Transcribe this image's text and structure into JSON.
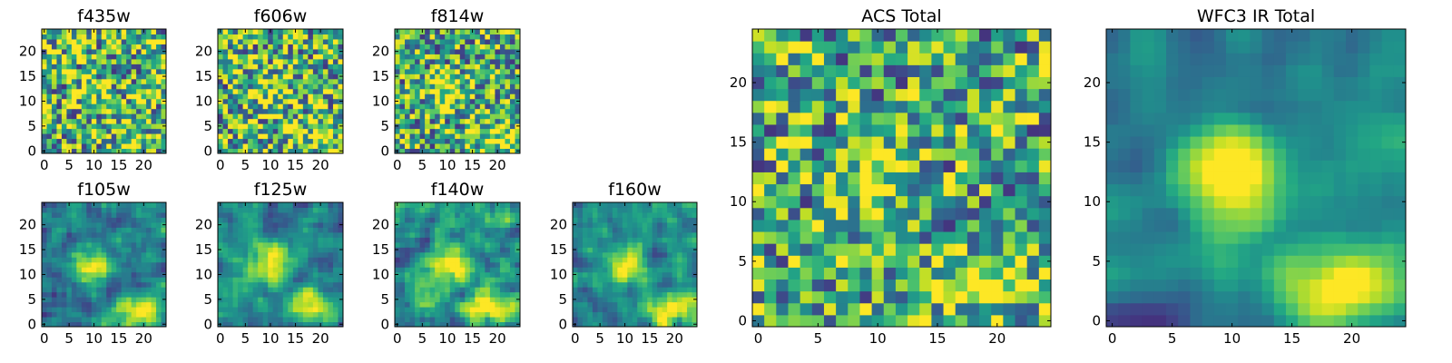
{
  "chart_data": [
    {
      "type": "heatmap",
      "title": "f435w",
      "grid_size": 25,
      "colormap": "viridis",
      "xticks": [
        0,
        5,
        10,
        15,
        20
      ],
      "yticks": [
        0,
        5,
        10,
        15,
        20
      ],
      "xlim": [
        0,
        24
      ],
      "ylim": [
        0,
        24
      ],
      "grid": false
    },
    {
      "type": "heatmap",
      "title": "f606w",
      "grid_size": 25,
      "colormap": "viridis",
      "xticks": [
        0,
        5,
        10,
        15,
        20
      ],
      "yticks": [
        0,
        5,
        10,
        15,
        20
      ],
      "xlim": [
        0,
        24
      ],
      "ylim": [
        0,
        24
      ],
      "grid": false
    },
    {
      "type": "heatmap",
      "title": "f814w",
      "grid_size": 25,
      "colormap": "viridis",
      "xticks": [
        0,
        5,
        10,
        15,
        20
      ],
      "yticks": [
        0,
        5,
        10,
        15,
        20
      ],
      "xlim": [
        0,
        24
      ],
      "ylim": [
        0,
        24
      ],
      "grid": false
    },
    {
      "type": "heatmap",
      "title": "f105w",
      "grid_size": 25,
      "colormap": "viridis",
      "xticks": [
        0,
        5,
        10,
        15,
        20
      ],
      "yticks": [
        0,
        5,
        10,
        15,
        20
      ],
      "xlim": [
        0,
        24
      ],
      "ylim": [
        0,
        24
      ],
      "grid": false
    },
    {
      "type": "heatmap",
      "title": "f125w",
      "grid_size": 25,
      "colormap": "viridis",
      "xticks": [
        0,
        5,
        10,
        15,
        20
      ],
      "yticks": [
        0,
        5,
        10,
        15,
        20
      ],
      "xlim": [
        0,
        24
      ],
      "ylim": [
        0,
        24
      ],
      "grid": false
    },
    {
      "type": "heatmap",
      "title": "f140w",
      "grid_size": 25,
      "colormap": "viridis",
      "xticks": [
        0,
        5,
        10,
        15,
        20
      ],
      "yticks": [
        0,
        5,
        10,
        15,
        20
      ],
      "xlim": [
        0,
        24
      ],
      "ylim": [
        0,
        24
      ],
      "grid": false
    },
    {
      "type": "heatmap",
      "title": "f160w",
      "grid_size": 25,
      "colormap": "viridis",
      "xticks": [
        0,
        5,
        10,
        15,
        20
      ],
      "yticks": [
        0,
        5,
        10,
        15,
        20
      ],
      "xlim": [
        0,
        24
      ],
      "ylim": [
        0,
        24
      ],
      "grid": false
    },
    {
      "type": "heatmap",
      "title": "ACS Total",
      "grid_size": 25,
      "colormap": "viridis",
      "xticks": [
        0,
        5,
        10,
        15,
        20
      ],
      "yticks": [
        0,
        5,
        10,
        15,
        20
      ],
      "xlim": [
        0,
        24
      ],
      "ylim": [
        0,
        24
      ],
      "grid": false
    },
    {
      "type": "heatmap",
      "title": "WFC3 IR Total",
      "grid_size": 25,
      "colormap": "viridis",
      "xticks": [
        0,
        5,
        10,
        15,
        20
      ],
      "yticks": [
        0,
        5,
        10,
        15,
        20
      ],
      "xlim": [
        0,
        24
      ],
      "ylim": [
        0,
        24
      ],
      "grid": false
    }
  ]
}
